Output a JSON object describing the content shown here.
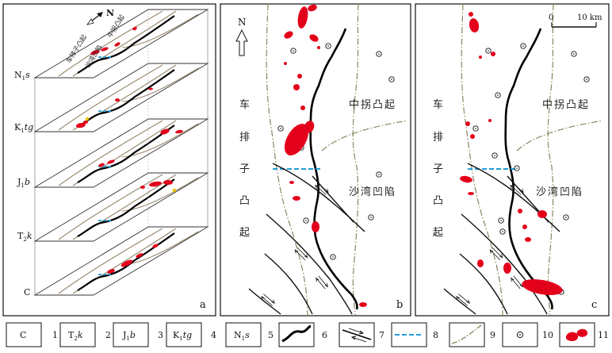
{
  "panel_a": {
    "letter": "a",
    "north": "N",
    "layer_labels": [
      {
        "main": "N",
        "sub": "1",
        "tail": "s"
      },
      {
        "main": "K",
        "sub": "1",
        "tail": "tg"
      },
      {
        "main": "J",
        "sub": "1",
        "tail": "b"
      },
      {
        "main": "T",
        "sub": "2",
        "tail": "k"
      },
      {
        "main": "C",
        "sub": "",
        "tail": ""
      }
    ],
    "top_text_1": "中拐凸起",
    "top_text_2": "沙湾凹陷",
    "top_text_3": "车排子凸起"
  },
  "panel_b": {
    "letter": "b",
    "north": "N",
    "west_label": [
      "车",
      "排",
      "子",
      "凸",
      "起"
    ],
    "ne_label": "中拐凸起",
    "e_label": "沙湾凹陷"
  },
  "panel_c": {
    "letter": "c",
    "scale_start": "0",
    "scale_end": "10 km",
    "west_label": [
      "车",
      "排",
      "子",
      "凸",
      "起"
    ],
    "ne_label": "中拐凸起",
    "e_label": "沙湾凹陷"
  },
  "legend": [
    {
      "symbol": {
        "main": "C",
        "sub": "",
        "tail": ""
      },
      "num": "1"
    },
    {
      "symbol": {
        "main": "T",
        "sub": "2",
        "tail": "k"
      },
      "num": "2"
    },
    {
      "symbol": {
        "main": "J",
        "sub": "1",
        "tail": "b"
      },
      "num": "3"
    },
    {
      "symbol": {
        "main": "K",
        "sub": "1",
        "tail": "tg"
      },
      "num": "4"
    },
    {
      "symbol": {
        "main": "N",
        "sub": "1",
        "tail": "s"
      },
      "num": "5"
    },
    {
      "symbol": "thick-line",
      "num": "6"
    },
    {
      "symbol": "fault",
      "num": "7"
    },
    {
      "symbol": "dashed-blue",
      "num": "8"
    },
    {
      "symbol": "dash-dot",
      "num": "9"
    },
    {
      "symbol": "well",
      "num": "10"
    },
    {
      "symbol": "red-body",
      "num": "11"
    }
  ],
  "colors": {
    "red": "#e3001b",
    "blue": "#1f9fd6",
    "boundary": "#8a8660",
    "contour": "#9a8a70",
    "yellow": "#e8c200"
  }
}
